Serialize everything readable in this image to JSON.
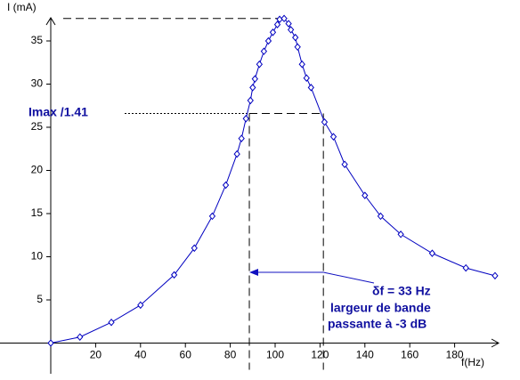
{
  "chart_data": {
    "type": "line",
    "y_label": "I (mA)",
    "x_label": "f(Hz)",
    "x": [
      0,
      13,
      27,
      40,
      55,
      64,
      72,
      78,
      83,
      85,
      87,
      89,
      90,
      91,
      93,
      95,
      97,
      99,
      101,
      102,
      104,
      106,
      107,
      109,
      110,
      112,
      114,
      116,
      122,
      126,
      131,
      140,
      147,
      156,
      170,
      185,
      198
    ],
    "series": [
      {
        "color": "#0000c0",
        "values": [
          0,
          0.7,
          2.4,
          4.4,
          7.9,
          11,
          14.7,
          18.3,
          21.9,
          23.7,
          26,
          28.1,
          29.6,
          30.6,
          32.3,
          33.8,
          35,
          36,
          36.9,
          37.5,
          37.6,
          37,
          36.3,
          35.4,
          34.3,
          32.3,
          30.7,
          29.6,
          25.6,
          23.9,
          20.7,
          17.1,
          14.7,
          12.6,
          10.4,
          8.7,
          7.8
        ]
      }
    ],
    "xlim": [
      0,
      200
    ],
    "ylim": [
      0,
      37.5
    ],
    "xticks": [
      20,
      40,
      60,
      80,
      100,
      120,
      140,
      160,
      180
    ],
    "yticks": [
      5,
      10,
      15,
      20,
      25,
      30,
      35
    ],
    "imax": 37.6,
    "cutoff_level": 26.6,
    "f1": 88.5,
    "f2": 121.5,
    "annotations": {
      "level_label": "Imax /1.41",
      "bandwidth": "δf = 33 Hz",
      "line1": "largeur de bande",
      "line2": "passante à -3 dB"
    }
  }
}
